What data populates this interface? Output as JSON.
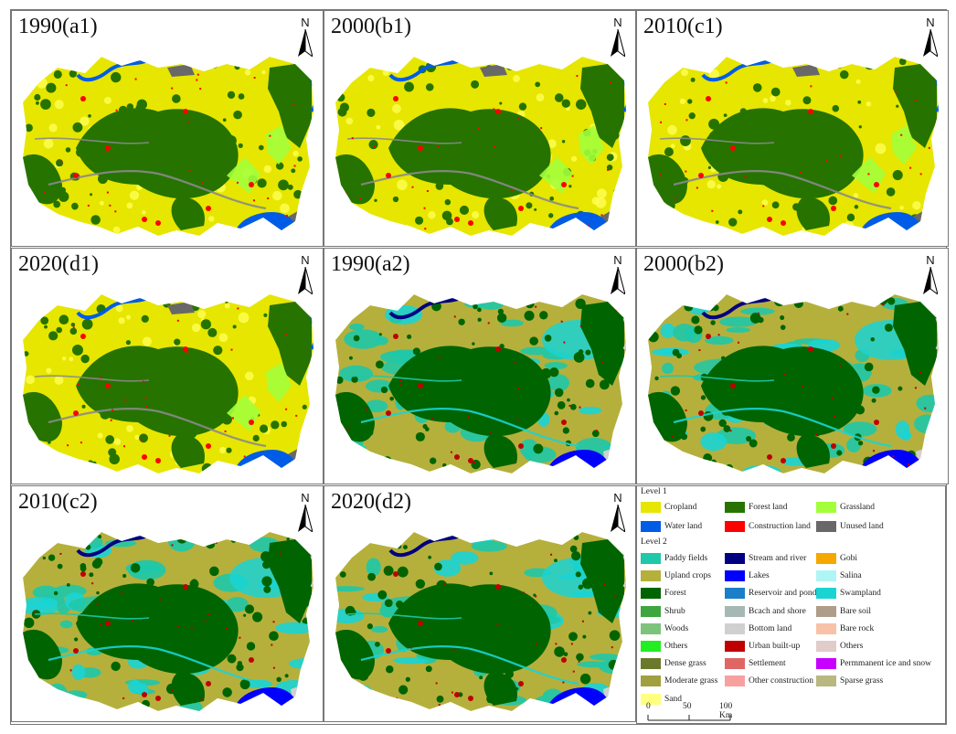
{
  "panels": [
    {
      "label": "1990(a1)",
      "scheme": "level1",
      "north": "N"
    },
    {
      "label": "2000(b1)",
      "scheme": "level1",
      "north": "N"
    },
    {
      "label": "2010(c1)",
      "scheme": "level1",
      "north": "N"
    },
    {
      "label": "2020(d1)",
      "scheme": "level1",
      "north": "N"
    },
    {
      "label": "1990(a2)",
      "scheme": "level2",
      "north": "N"
    },
    {
      "label": "2000(b2)",
      "scheme": "level2",
      "north": "N"
    },
    {
      "label": "2010(c2)",
      "scheme": "level2",
      "north": "N"
    },
    {
      "label": "2020(d2)",
      "scheme": "level2",
      "north": "N"
    }
  ],
  "legend": {
    "level1_title": "Level 1",
    "level2_title": "Level 2",
    "level1": [
      {
        "label": "Cropland",
        "color": "#e6e600"
      },
      {
        "label": "Forest land",
        "color": "#267300"
      },
      {
        "label": "Grassland",
        "color": "#a3ff3a"
      },
      {
        "label": "Water land",
        "color": "#005ce6"
      },
      {
        "label": "Construction land",
        "color": "#ff0000"
      },
      {
        "label": "Unused land",
        "color": "#686868"
      }
    ],
    "level2": [
      {
        "label": "Paddy fields",
        "color": "#1ec8a8"
      },
      {
        "label": "Stream and river",
        "color": "#000080"
      },
      {
        "label": "Gobi",
        "color": "#f5a800"
      },
      {
        "label": "Upland crops",
        "color": "#b5b03c"
      },
      {
        "label": "Lakes",
        "color": "#0000ff"
      },
      {
        "label": "Salina",
        "color": "#b0f5f5"
      },
      {
        "label": "Forest",
        "color": "#006400"
      },
      {
        "label": "Reservoir and pond",
        "color": "#1a7ec8"
      },
      {
        "label": "Swampland",
        "color": "#1ad4d4"
      },
      {
        "label": "Shrub",
        "color": "#3ea63e"
      },
      {
        "label": "Bcach and shore",
        "color": "#a6b8b4"
      },
      {
        "label": "Bare soil",
        "color": "#b09c8a"
      },
      {
        "label": "Woods",
        "color": "#7cc47c"
      },
      {
        "label": "Bottom land",
        "color": "#d0d0d0"
      },
      {
        "label": "Bare rock",
        "color": "#f8c2a8"
      },
      {
        "label": "Others",
        "color": "#22ee22"
      },
      {
        "label": "Urban built-up",
        "color": "#c00000"
      },
      {
        "label": "Others",
        "color": "#e0ccc8"
      },
      {
        "label": "Dense grass",
        "color": "#6b7a2a"
      },
      {
        "label": "Settlement",
        "color": "#e06666"
      },
      {
        "label": "Permmanent ice and snow",
        "color": "#c800ff"
      },
      {
        "label": "Moderate grass",
        "color": "#a0a040"
      },
      {
        "label": "Other construction land",
        "color": "#f8a0a0"
      },
      {
        "label": "Sparse grass",
        "color": "#b8b880"
      },
      {
        "label": "Sand",
        "color": "#ffff80"
      }
    ]
  },
  "scale_bar": {
    "labels": [
      "0",
      "50",
      "100 Km"
    ]
  },
  "colors": {
    "level1_base": "#e6e600",
    "level1_forest": "#267300",
    "level1_water": "#005ce6",
    "level1_built": "#ff0000",
    "level1_grass": "#a3ff3a",
    "level1_unused": "#686868",
    "level2_base": "#b5b03c",
    "level2_forest": "#006400",
    "level2_paddy": "#1ec8a8",
    "level2_swamp": "#1ad4d4",
    "level2_lake": "#0000ff",
    "level2_river": "#000080",
    "level2_built": "#c00000"
  }
}
